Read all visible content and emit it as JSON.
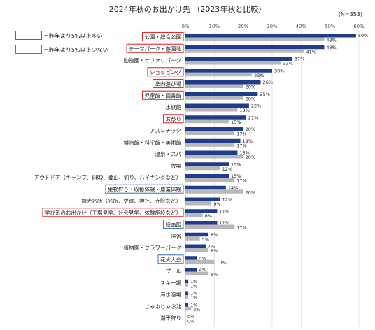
{
  "chart_data": {
    "type": "bar",
    "orientation": "horizontal",
    "title": "2024年秋のお出かけ先 （2023年秋と比較）",
    "sample_note": "(N=353)",
    "xlim": [
      0,
      60
    ],
    "xticks": [
      "0%",
      "10%",
      "20%",
      "30%",
      "40%",
      "50%",
      "60%"
    ],
    "grid": true,
    "legend": [
      {
        "label": "＝昨年より5%以上多い",
        "color": "#e03030"
      },
      {
        "label": "＝昨年より5%以上少ない",
        "color": "#4a78c8"
      }
    ],
    "categories": [
      "公園・総合公園",
      "テーマパーク・遊園地",
      "動物園・サファリパーク",
      "ショッピング",
      "室内遊び場",
      "児童館・図書館",
      "水族館",
      "お祭り",
      "アスレチック",
      "博物館・科学館・美術館",
      "温泉・スパ",
      "牧場",
      "アウトドア（キャンプ、BBQ、登山、釣り、ハイキングなど）",
      "果物狩り・収穫体験・農業体験",
      "観光名所（名所、史跡、神社、寺院など）",
      "学び系のお出かけ（工場見学、社会見学、体験施設など）",
      "映画館",
      "帰省",
      "植物園・フラワーパーク",
      "花火大会",
      "プール",
      "スキー場",
      "海水浴場",
      "じゃぶじゃぶ池",
      "潮干狩り"
    ],
    "highlight": [
      "up",
      "up",
      "none",
      "up",
      "up",
      "up",
      "none",
      "up",
      "none",
      "none",
      "none",
      "none",
      "none",
      "down",
      "none",
      "up",
      "down",
      "none",
      "none",
      "down",
      "none",
      "none",
      "none",
      "none",
      "none"
    ],
    "series": [
      {
        "name": "2024年秋",
        "color": "#1f3d8c",
        "values": [
          59,
          48,
          37,
          30,
          26,
          25,
          22,
          21,
          20,
          19,
          18,
          15,
          15,
          14,
          12,
          11,
          11,
          8,
          7,
          4,
          4,
          1,
          1,
          1,
          0
        ]
      },
      {
        "name": "2023年秋",
        "color": "#b8b8b8",
        "values": [
          48,
          41,
          33,
          23,
          20,
          20,
          18,
          15,
          17,
          17,
          20,
          12,
          17,
          20,
          9,
          6,
          17,
          5,
          8,
          10,
          8,
          1,
          1,
          2,
          0
        ]
      }
    ],
    "value_suffix": "%"
  }
}
